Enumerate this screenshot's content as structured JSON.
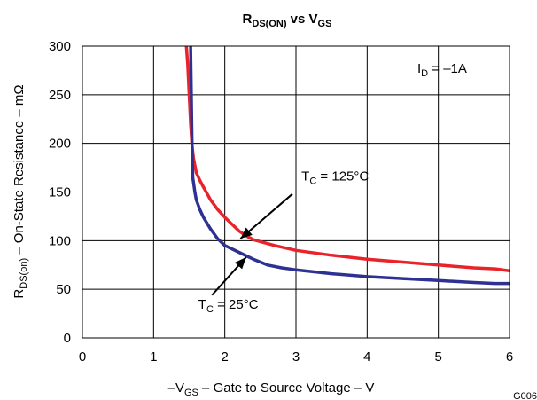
{
  "chart_data": {
    "type": "line",
    "title": {
      "main": "R",
      "sub": "DS(ON)",
      "mid": " vs V",
      "sub2": "GS"
    },
    "xlabel": {
      "pre": "–V",
      "sub": "GS",
      "post": " – Gate to Source Voltage – V"
    },
    "ylabel": {
      "pre": "R",
      "sub": "DS(on)",
      "post": " – On-State Resistance – mΩ"
    },
    "xlim": [
      0,
      6
    ],
    "ylim": [
      0,
      300
    ],
    "xticks": [
      "0",
      "1",
      "2",
      "3",
      "4",
      "5",
      "6"
    ],
    "yticks": [
      "0",
      "50",
      "100",
      "150",
      "200",
      "250",
      "300"
    ],
    "grid": true,
    "figure_id": "G006",
    "condition": {
      "pre": "I",
      "sub": "D",
      "post": " = –1A"
    },
    "series": [
      {
        "name": "T_C = 125°C",
        "label": {
          "pre": "T",
          "sub": "C",
          "post": " = 125°C"
        },
        "color": "#e8232a",
        "x": [
          1.46,
          1.48,
          1.5,
          1.52,
          1.54,
          1.56,
          1.6,
          1.65,
          1.7,
          1.8,
          1.9,
          2.0,
          2.1,
          2.2,
          2.3,
          2.4,
          2.5,
          2.7,
          3.0,
          3.5,
          4.0,
          4.5,
          5.0,
          5.5,
          5.8,
          6.0
        ],
        "y": [
          300,
          280,
          250,
          220,
          198,
          185,
          170,
          162,
          155,
          142,
          132,
          124,
          117,
          110,
          105,
          101,
          99,
          95,
          90,
          85,
          81,
          78,
          75,
          72,
          71,
          69
        ]
      },
      {
        "name": "T_C = 25°C",
        "label": {
          "pre": "T",
          "sub": "C",
          "post": " = 25°C"
        },
        "color": "#2e3192",
        "x": [
          1.52,
          1.53,
          1.54,
          1.55,
          1.56,
          1.58,
          1.6,
          1.65,
          1.7,
          1.8,
          1.9,
          2.0,
          2.2,
          2.4,
          2.6,
          2.8,
          3.0,
          3.5,
          4.0,
          4.5,
          5.0,
          5.5,
          5.8,
          6.0
        ],
        "y": [
          300,
          250,
          200,
          165,
          160,
          150,
          142,
          132,
          124,
          112,
          102,
          95,
          88,
          81,
          75,
          72,
          70,
          66,
          63,
          61,
          59,
          57,
          56,
          56
        ]
      }
    ],
    "annotations": [
      {
        "for": 0,
        "text_at": [
          3.55,
          162
        ],
        "arrow_from": [
          2.95,
          148
        ],
        "arrow_to": [
          2.22,
          102
        ]
      },
      {
        "for": 1,
        "text_at": [
          2.05,
          30
        ],
        "arrow_from": [
          1.82,
          44
        ],
        "arrow_to": [
          2.3,
          83
        ]
      }
    ]
  }
}
